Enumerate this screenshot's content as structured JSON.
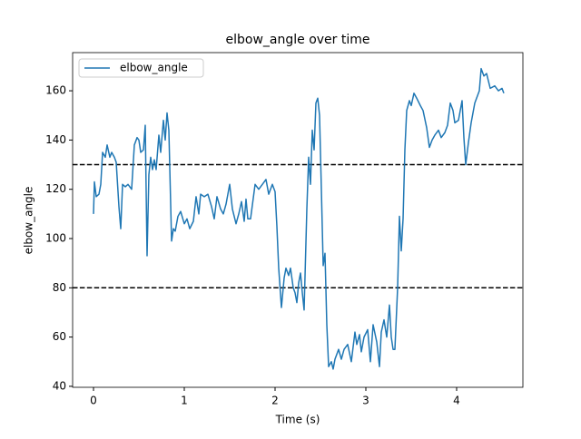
{
  "chart_data": {
    "type": "line",
    "title": "elbow_angle over time",
    "x_label": "Time (s)",
    "y_label": "elbow_angle",
    "x": [
      0.0,
      0.01,
      0.03,
      0.06,
      0.08,
      0.1,
      0.13,
      0.15,
      0.18,
      0.2,
      0.23,
      0.25,
      0.28,
      0.3,
      0.32,
      0.35,
      0.38,
      0.42,
      0.45,
      0.48,
      0.5,
      0.52,
      0.55,
      0.57,
      0.59,
      0.61,
      0.63,
      0.65,
      0.67,
      0.69,
      0.72,
      0.74,
      0.77,
      0.79,
      0.81,
      0.83,
      0.86,
      0.88,
      0.9,
      0.93,
      0.96,
      1.0,
      1.03,
      1.06,
      1.1,
      1.13,
      1.16,
      1.18,
      1.22,
      1.26,
      1.3,
      1.33,
      1.36,
      1.4,
      1.43,
      1.46,
      1.5,
      1.53,
      1.57,
      1.6,
      1.63,
      1.66,
      1.68,
      1.7,
      1.73,
      1.78,
      1.82,
      1.86,
      1.9,
      1.93,
      1.97,
      2.0,
      2.02,
      2.04,
      2.07,
      2.1,
      2.12,
      2.15,
      2.17,
      2.2,
      2.22,
      2.24,
      2.26,
      2.28,
      2.3,
      2.32,
      2.35,
      2.37,
      2.39,
      2.41,
      2.43,
      2.45,
      2.47,
      2.49,
      2.51,
      2.53,
      2.55,
      2.57,
      2.59,
      2.62,
      2.64,
      2.66,
      2.7,
      2.73,
      2.76,
      2.8,
      2.84,
      2.88,
      2.9,
      2.93,
      2.95,
      2.98,
      3.02,
      3.05,
      3.08,
      3.12,
      3.15,
      3.17,
      3.2,
      3.23,
      3.26,
      3.28,
      3.3,
      3.32,
      3.35,
      3.37,
      3.39,
      3.41,
      3.43,
      3.45,
      3.48,
      3.5,
      3.53,
      3.56,
      3.6,
      3.63,
      3.67,
      3.7,
      3.73,
      3.76,
      3.8,
      3.83,
      3.87,
      3.9,
      3.93,
      3.96,
      3.98,
      4.02,
      4.06,
      4.08,
      4.1,
      4.13,
      4.16,
      4.2,
      4.25,
      4.27,
      4.3,
      4.33,
      4.37,
      4.42,
      4.46,
      4.5,
      4.52
    ],
    "series": [
      {
        "name": "elbow_angle",
        "color": "#1f77b4",
        "values": [
          110,
          123,
          117,
          118,
          122,
          135,
          133,
          138,
          133,
          135,
          133,
          131,
          113,
          104,
          122,
          121,
          122,
          120,
          138,
          141,
          140,
          135,
          136,
          146,
          93,
          126,
          133,
          128,
          132,
          128,
          142,
          135,
          148,
          140,
          151,
          144,
          99,
          104,
          103,
          109,
          111,
          106,
          108,
          104,
          107,
          117,
          110,
          118,
          117,
          118,
          113,
          108,
          117,
          112,
          110,
          114,
          122,
          112,
          106,
          110,
          115,
          107,
          116,
          108,
          108,
          122,
          120,
          122,
          124,
          118,
          122,
          119,
          105,
          88,
          72,
          84,
          88,
          85,
          88,
          80,
          78,
          74,
          82,
          86,
          78,
          71,
          112,
          133,
          122,
          144,
          136,
          155,
          157,
          150,
          120,
          89,
          94,
          65,
          48,
          50,
          47,
          51,
          55,
          51,
          55,
          57,
          50,
          62,
          57,
          61,
          54,
          60,
          63,
          50,
          65,
          58,
          48,
          62,
          67,
          60,
          73,
          60,
          55,
          55,
          80,
          109,
          95,
          108,
          136,
          152,
          156,
          154,
          159,
          157,
          154,
          152,
          145,
          137,
          140,
          142,
          144,
          141,
          143,
          146,
          155,
          152,
          147,
          148,
          156,
          141,
          130,
          139,
          147,
          155,
          160,
          169,
          166,
          167,
          161,
          162,
          160,
          161,
          159
        ]
      }
    ],
    "xlim": [
      -0.23,
      4.73
    ],
    "ylim": [
      39.6,
      175.5
    ],
    "xticks": [
      0,
      1,
      2,
      3,
      4
    ],
    "yticks": [
      40,
      60,
      80,
      100,
      120,
      140,
      160
    ],
    "hlines": [
      130,
      80
    ],
    "hline_color": "#000000",
    "hline_style": "dashed",
    "legend": "upper left",
    "grid": false
  }
}
